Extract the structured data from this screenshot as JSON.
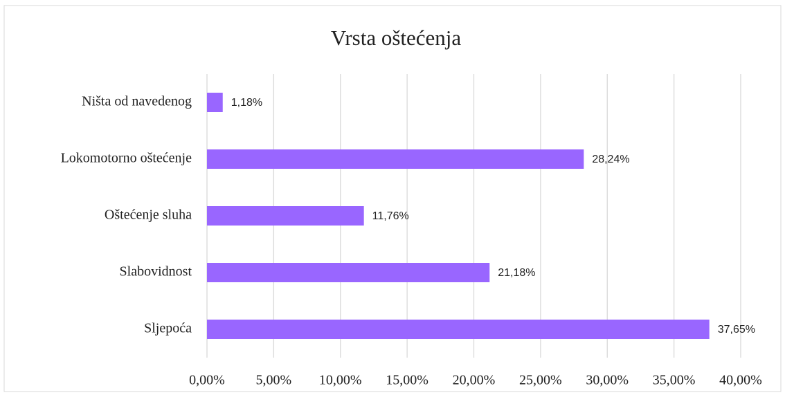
{
  "chart_data": {
    "type": "bar",
    "orientation": "horizontal",
    "title": "Vrsta oštećenja",
    "categories": [
      "Ništa od navedenog",
      "Lokomotorno oštećenje",
      "Oštećenje sluha",
      "Slabovidnost",
      "Sljepoća"
    ],
    "values": [
      1.18,
      28.24,
      11.76,
      21.18,
      37.65
    ],
    "value_labels": [
      "1,18%",
      "28,24%",
      "11,76%",
      "21,18%",
      "37,65%"
    ],
    "color": "#9966ff",
    "xlim": [
      0,
      40
    ],
    "xticks": [
      {
        "value": 0,
        "label": "0,00%"
      },
      {
        "value": 5,
        "label": "5,00%"
      },
      {
        "value": 10,
        "label": "10,00%"
      },
      {
        "value": 15,
        "label": "15,00%"
      },
      {
        "value": 20,
        "label": "20,00%"
      },
      {
        "value": 25,
        "label": "25,00%"
      },
      {
        "value": 30,
        "label": "30,00%"
      },
      {
        "value": 35,
        "label": "35,00%"
      },
      {
        "value": 40,
        "label": "40,00%"
      }
    ],
    "grid": true
  }
}
